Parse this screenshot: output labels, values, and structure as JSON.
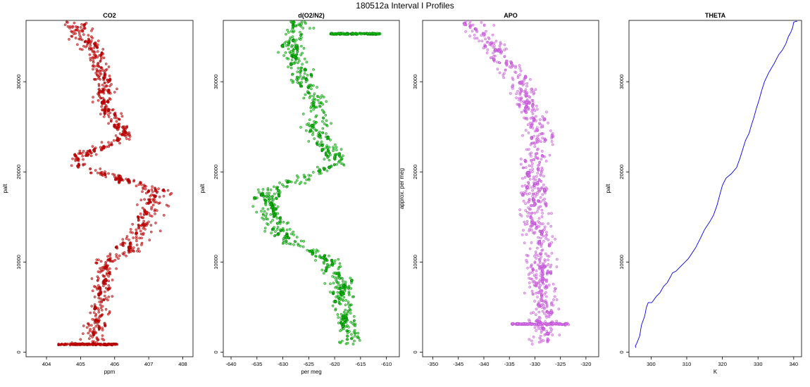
{
  "suptitle": "180512a   Interval I Profiles",
  "chart_data": [
    {
      "type": "scatter",
      "title": "CO2",
      "xlabel": "ppm",
      "ylabel": "palt",
      "xlim": [
        403.4,
        408.3
      ],
      "ylim": [
        -500,
        36800
      ],
      "xticks": [
        404,
        405,
        406,
        407,
        408
      ],
      "yticks": [
        0,
        10000,
        20000,
        30000
      ],
      "color": "#dd0000",
      "marker": "open-circle",
      "profile": [
        [
          600,
          405.2,
          0.55
        ],
        [
          2000,
          405.4,
          0.3
        ],
        [
          4000,
          405.5,
          0.3
        ],
        [
          6000,
          405.6,
          0.3
        ],
        [
          8000,
          405.6,
          0.3
        ],
        [
          10000,
          405.7,
          0.3
        ],
        [
          11000,
          406.3,
          0.35
        ],
        [
          12000,
          406.5,
          0.35
        ],
        [
          13500,
          406.8,
          0.4
        ],
        [
          15000,
          406.9,
          0.4
        ],
        [
          16500,
          407.1,
          0.4
        ],
        [
          18000,
          407.2,
          0.4
        ],
        [
          19000,
          406.4,
          0.35
        ],
        [
          20000,
          405.5,
          0.35
        ],
        [
          21000,
          404.8,
          0.35
        ],
        [
          22000,
          405.1,
          0.35
        ],
        [
          23000,
          405.9,
          0.35
        ],
        [
          24000,
          406.3,
          0.35
        ],
        [
          25500,
          406.0,
          0.35
        ],
        [
          27000,
          405.8,
          0.3
        ],
        [
          28500,
          405.7,
          0.3
        ],
        [
          30000,
          405.7,
          0.3
        ],
        [
          31500,
          405.6,
          0.3
        ],
        [
          33000,
          405.5,
          0.3
        ],
        [
          34500,
          405.2,
          0.35
        ],
        [
          35500,
          404.9,
          0.4
        ],
        [
          36800,
          404.8,
          0.4
        ]
      ]
    },
    {
      "type": "scatter",
      "title": "d(O2/N2)",
      "xlabel": "per meg",
      "ylabel": "palt",
      "xlim": [
        -641.5,
        -607.5
      ],
      "ylim": [
        -500,
        36800
      ],
      "xticks": [
        -640,
        -635,
        -630,
        -625,
        -620,
        -615,
        -610
      ],
      "yticks": [
        0,
        10000,
        20000,
        30000
      ],
      "color": "#00dd00",
      "marker": "open-circle",
      "profile": [
        [
          600,
          -616,
          3.0
        ],
        [
          2000,
          -617,
          2.2
        ],
        [
          4000,
          -618,
          2.2
        ],
        [
          6000,
          -618.5,
          2.2
        ],
        [
          8000,
          -619,
          2.2
        ],
        [
          10000,
          -621,
          2.2
        ],
        [
          11000,
          -624,
          2.4
        ],
        [
          12000,
          -628,
          2.6
        ],
        [
          13500,
          -630,
          2.6
        ],
        [
          15000,
          -632,
          2.6
        ],
        [
          16500,
          -633,
          2.6
        ],
        [
          18000,
          -633,
          2.6
        ],
        [
          19000,
          -628,
          2.4
        ],
        [
          20000,
          -623,
          2.4
        ],
        [
          21000,
          -619,
          2.2
        ],
        [
          22000,
          -620,
          2.2
        ],
        [
          23000,
          -622,
          2.2
        ],
        [
          24000,
          -623,
          2.2
        ],
        [
          25500,
          -624,
          2.2
        ],
        [
          27000,
          -623,
          2.2
        ],
        [
          28500,
          -624,
          2.2
        ],
        [
          30000,
          -626,
          2.2
        ],
        [
          31500,
          -627,
          2.2
        ],
        [
          33000,
          -628,
          2.2
        ],
        [
          34500,
          -628,
          2.4
        ],
        [
          35500,
          -627,
          2.4
        ],
        [
          36800,
          -627,
          2.6
        ]
      ]
    },
    {
      "type": "scatter",
      "title": "APO",
      "xlabel": "",
      "ylabel": "approx. per meg",
      "xlim": [
        -352,
        -317.5
      ],
      "ylim": [
        -500,
        36800
      ],
      "xticks": [
        -350,
        -345,
        -340,
        -335,
        -330,
        -325,
        -320
      ],
      "yticks": [
        0,
        10000,
        20000,
        30000
      ],
      "color": "#ee82ee",
      "marker": "open-circle",
      "profile": [
        [
          600,
          -329,
          3.5
        ],
        [
          2000,
          -328,
          2.6
        ],
        [
          4000,
          -328,
          2.6
        ],
        [
          6000,
          -328,
          2.6
        ],
        [
          8000,
          -329,
          2.6
        ],
        [
          10000,
          -329,
          2.6
        ],
        [
          11000,
          -329,
          2.6
        ],
        [
          12000,
          -329,
          2.6
        ],
        [
          13500,
          -329.5,
          2.6
        ],
        [
          15000,
          -330,
          2.6
        ],
        [
          16500,
          -330,
          2.6
        ],
        [
          18000,
          -330,
          2.6
        ],
        [
          19000,
          -330,
          2.6
        ],
        [
          20000,
          -330,
          2.6
        ],
        [
          21000,
          -330,
          2.6
        ],
        [
          22000,
          -330,
          2.6
        ],
        [
          23000,
          -329.5,
          2.6
        ],
        [
          24000,
          -329.5,
          2.6
        ],
        [
          25500,
          -330,
          2.6
        ],
        [
          27000,
          -331,
          2.6
        ],
        [
          28500,
          -332,
          2.6
        ],
        [
          30000,
          -333,
          2.6
        ],
        [
          31500,
          -335,
          2.8
        ],
        [
          33000,
          -337,
          3.0
        ],
        [
          34500,
          -339,
          3.2
        ],
        [
          35500,
          -341,
          3.4
        ],
        [
          36800,
          -343,
          3.6
        ]
      ]
    },
    {
      "type": "line",
      "title": "THETA",
      "xlabel": "K",
      "ylabel": "palt",
      "xlim": [
        293.8,
        342.2
      ],
      "ylim": [
        -500,
        36800
      ],
      "xticks": [
        300,
        310,
        320,
        330,
        340
      ],
      "yticks": [
        0,
        10000,
        20000,
        30000
      ],
      "color": "#0000ee",
      "points": [
        [
          295.7,
          500
        ],
        [
          295.6,
          700
        ],
        [
          296.0,
          1000
        ],
        [
          296.8,
          1800
        ],
        [
          297.3,
          3000
        ],
        [
          298.2,
          4000
        ],
        [
          298.7,
          5000
        ],
        [
          299.2,
          5500
        ],
        [
          300.2,
          5500
        ],
        [
          301.5,
          6200
        ],
        [
          302.5,
          6600
        ],
        [
          303.5,
          7300
        ],
        [
          304.5,
          7700
        ],
        [
          305.5,
          8400
        ],
        [
          306.0,
          8800
        ],
        [
          307.0,
          9000
        ],
        [
          308.5,
          9600
        ],
        [
          309.5,
          10000
        ],
        [
          310.5,
          10400
        ],
        [
          311.5,
          11000
        ],
        [
          312.5,
          11600
        ],
        [
          313.8,
          12600
        ],
        [
          315.0,
          13600
        ],
        [
          316.5,
          14500
        ],
        [
          317.5,
          15200
        ],
        [
          318.5,
          16300
        ],
        [
          319.3,
          17500
        ],
        [
          320.0,
          18500
        ],
        [
          321.0,
          19300
        ],
        [
          322.5,
          19800
        ],
        [
          324.0,
          20500
        ],
        [
          325.0,
          21600
        ],
        [
          325.7,
          22500
        ],
        [
          326.5,
          23500
        ],
        [
          327.5,
          24300
        ],
        [
          328.0,
          25000
        ],
        [
          328.8,
          26000
        ],
        [
          329.5,
          27000
        ],
        [
          330.3,
          28000
        ],
        [
          331.0,
          29000
        ],
        [
          331.8,
          30000
        ],
        [
          333.0,
          31000
        ],
        [
          334.5,
          32000
        ],
        [
          335.8,
          33000
        ],
        [
          336.8,
          33500
        ],
        [
          337.8,
          34200
        ],
        [
          338.5,
          35000
        ],
        [
          339.2,
          35500
        ],
        [
          339.7,
          36000
        ],
        [
          340.0,
          36600
        ],
        [
          340.6,
          36700
        ],
        [
          341.0,
          36700
        ]
      ]
    }
  ]
}
